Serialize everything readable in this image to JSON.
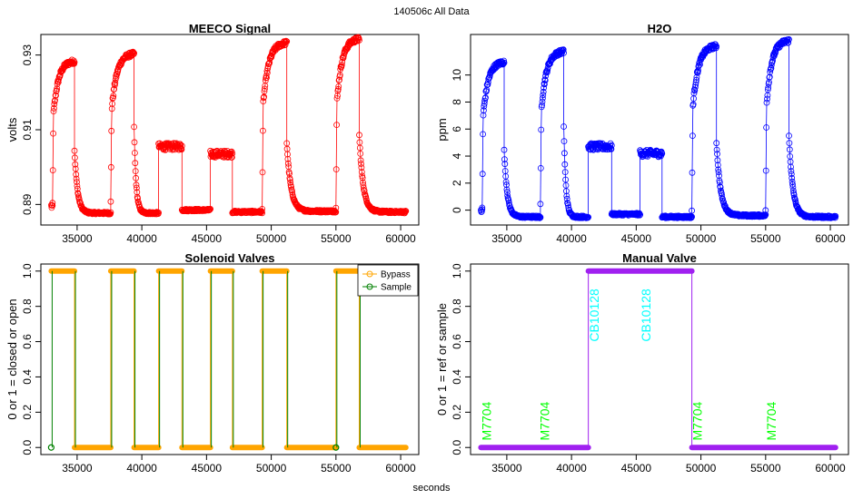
{
  "figure": {
    "title": "140506c   All Data",
    "xlabel": "seconds"
  },
  "chart_data": [
    {
      "id": "meeco",
      "type": "scatter",
      "title": "MEECO Signal",
      "ylabel": "volts",
      "color": "#ff0000",
      "xlim": [
        32200,
        61400
      ],
      "ylim": [
        0.8845,
        0.9355
      ],
      "xticks": [
        35000,
        40000,
        45000,
        50000,
        55000,
        60000
      ],
      "xtick_labels": [
        "35000",
        "40000",
        "45000",
        "50000",
        "55000",
        "60000"
      ],
      "yticks": [
        0.89,
        0.91,
        0.93
      ],
      "ytick_labels": [
        "0.89",
        "0.91",
        "0.93"
      ],
      "segments": [
        {
          "x0": 33000,
          "x1": 33100,
          "kind": "plateau",
          "base": 0.8895
        },
        {
          "x0": 33100,
          "x1": 34800,
          "kind": "rise",
          "base": 0.8895,
          "top": 0.9285
        },
        {
          "x0": 34800,
          "x1": 37600,
          "kind": "decay",
          "base": 0.8877,
          "top": 0.9045
        },
        {
          "x0": 37600,
          "x1": 39400,
          "kind": "rise",
          "base": 0.8905,
          "top": 0.9305
        },
        {
          "x0": 39400,
          "x1": 41300,
          "kind": "decay",
          "base": 0.8877,
          "top": 0.9105
        },
        {
          "x0": 41300,
          "x1": 43100,
          "kind": "plateau",
          "base": 0.9055
        },
        {
          "x0": 43100,
          "x1": 45300,
          "kind": "decay",
          "base": 0.8885,
          "top": 0.8885
        },
        {
          "x0": 45300,
          "x1": 47000,
          "kind": "plateau",
          "base": 0.9035
        },
        {
          "x0": 47000,
          "x1": 49300,
          "kind": "decay",
          "base": 0.888,
          "top": 0.888
        },
        {
          "x0": 49300,
          "x1": 51200,
          "kind": "rise",
          "base": 0.889,
          "top": 0.9335
        },
        {
          "x0": 51200,
          "x1": 55000,
          "kind": "decay",
          "base": 0.8882,
          "top": 0.9065
        },
        {
          "x0": 55000,
          "x1": 56800,
          "kind": "rise",
          "base": 0.889,
          "top": 0.9345
        },
        {
          "x0": 56800,
          "x1": 60400,
          "kind": "decay",
          "base": 0.888,
          "top": 0.9085
        }
      ]
    },
    {
      "id": "h2o",
      "type": "scatter",
      "title": "H2O",
      "ylabel": "ppm",
      "color": "#0000ff",
      "xlim": [
        32200,
        61400
      ],
      "ylim": [
        -1.1,
        13.0
      ],
      "xticks": [
        35000,
        40000,
        45000,
        50000,
        55000,
        60000
      ],
      "xtick_labels": [
        "35000",
        "40000",
        "45000",
        "50000",
        "55000",
        "60000"
      ],
      "yticks": [
        0,
        2,
        4,
        6,
        8,
        10
      ],
      "ytick_labels": [
        "0",
        "2",
        "4",
        "6",
        "8",
        "10"
      ],
      "segments": [
        {
          "x0": 33000,
          "x1": 33100,
          "kind": "plateau",
          "base": 0.0
        },
        {
          "x0": 33100,
          "x1": 34800,
          "kind": "rise",
          "base": 0.0,
          "top": 11.0
        },
        {
          "x0": 34800,
          "x1": 37600,
          "kind": "decay",
          "base": -0.5,
          "top": 4.4
        },
        {
          "x0": 37600,
          "x1": 39400,
          "kind": "rise",
          "base": 0.3,
          "top": 11.8
        },
        {
          "x0": 39400,
          "x1": 41300,
          "kind": "decay",
          "base": -0.5,
          "top": 6.2
        },
        {
          "x0": 41300,
          "x1": 43100,
          "kind": "plateau",
          "base": 4.7
        },
        {
          "x0": 43100,
          "x1": 45300,
          "kind": "decay",
          "base": -0.3,
          "top": -0.3
        },
        {
          "x0": 45300,
          "x1": 47000,
          "kind": "plateau",
          "base": 4.2
        },
        {
          "x0": 47000,
          "x1": 49300,
          "kind": "decay",
          "base": -0.5,
          "top": -0.5
        },
        {
          "x0": 49300,
          "x1": 51200,
          "kind": "rise",
          "base": 0.0,
          "top": 12.2
        },
        {
          "x0": 51200,
          "x1": 55000,
          "kind": "decay",
          "base": -0.4,
          "top": 5.0
        },
        {
          "x0": 55000,
          "x1": 56800,
          "kind": "rise",
          "base": 0.0,
          "top": 12.6
        },
        {
          "x0": 56800,
          "x1": 60400,
          "kind": "decay",
          "base": -0.5,
          "top": 5.5
        }
      ]
    },
    {
      "id": "solenoid",
      "type": "line",
      "title": "Solenoid Valves",
      "ylabel": "0 or 1 = closed or open",
      "xlim": [
        32200,
        61400
      ],
      "ylim": [
        -0.04,
        1.04
      ],
      "xticks": [
        35000,
        40000,
        45000,
        50000,
        55000,
        60000
      ],
      "xtick_labels": [
        "35000",
        "40000",
        "45000",
        "50000",
        "55000",
        "60000"
      ],
      "yticks": [
        0.0,
        0.2,
        0.4,
        0.6,
        0.8,
        1.0
      ],
      "ytick_labels": [
        "0.0",
        "0.2",
        "0.4",
        "0.6",
        "0.8",
        "1.0"
      ],
      "legend": {
        "position": "top-right",
        "entries": [
          "Bypass",
          "Sample"
        ]
      },
      "series": [
        {
          "name": "Bypass",
          "color": "#ffa500",
          "steps": [
            [
              33000,
              34800,
              1
            ],
            [
              34800,
              37600,
              0
            ],
            [
              37600,
              39400,
              1
            ],
            [
              39400,
              41300,
              0
            ],
            [
              41300,
              43100,
              1
            ],
            [
              43100,
              45300,
              0
            ],
            [
              45300,
              47000,
              1
            ],
            [
              47000,
              49300,
              0
            ],
            [
              49300,
              51200,
              1
            ],
            [
              51200,
              55000,
              0
            ],
            [
              55000,
              56800,
              1
            ],
            [
              56800,
              60400,
              0
            ]
          ]
        },
        {
          "name": "Sample",
          "color": "#008000",
          "points": [
            [
              33000,
              0
            ],
            [
              55000,
              0
            ]
          ],
          "transitions": [
            33000,
            34800,
            37600,
            39400,
            41300,
            43100,
            45300,
            47000,
            49300,
            51200,
            55000,
            56800
          ]
        }
      ]
    },
    {
      "id": "manual",
      "type": "line",
      "title": "Manual Valve",
      "ylabel": "0 or 1 = ref or sample",
      "xlim": [
        32200,
        61400
      ],
      "ylim": [
        -0.04,
        1.04
      ],
      "xticks": [
        35000,
        40000,
        45000,
        50000,
        55000,
        60000
      ],
      "xtick_labels": [
        "35000",
        "40000",
        "45000",
        "50000",
        "55000",
        "60000"
      ],
      "yticks": [
        0.0,
        0.2,
        0.4,
        0.6,
        0.8,
        1.0
      ],
      "ytick_labels": [
        "0.0",
        "0.2",
        "0.4",
        "0.6",
        "0.8",
        "1.0"
      ],
      "series": [
        {
          "name": "Manual",
          "color": "#a020f0",
          "steps": [
            [
              33000,
              41300,
              0
            ],
            [
              41300,
              49300,
              1
            ],
            [
              49300,
              60400,
              0
            ]
          ]
        }
      ],
      "annotations": [
        {
          "text": "M7704",
          "x": 33500,
          "y": 0.15,
          "color": "#00ff00"
        },
        {
          "text": "M7704",
          "x": 38000,
          "y": 0.15,
          "color": "#00ff00"
        },
        {
          "text": "CB10128",
          "x": 41800,
          "y": 0.75,
          "color": "#00ffff"
        },
        {
          "text": "CB10128",
          "x": 45800,
          "y": 0.75,
          "color": "#00ffff"
        },
        {
          "text": "M7704",
          "x": 49800,
          "y": 0.15,
          "color": "#00ff00"
        },
        {
          "text": "M7704",
          "x": 55500,
          "y": 0.15,
          "color": "#00ff00"
        }
      ]
    }
  ]
}
